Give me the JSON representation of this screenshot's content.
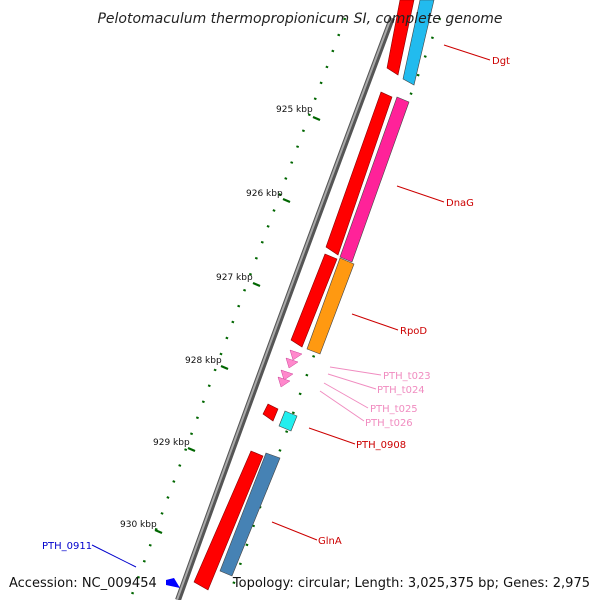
{
  "title": "Pelotomaculum thermopropionicum SI, complete genome",
  "footer": {
    "accession": "Accession: NC_009454",
    "summary": "Topology: circular; Length: 3,025,375 bp; Genes: 2,975"
  },
  "scale_labels": [
    "925 kbp",
    "926 kbp",
    "927 kbp",
    "928 kbp",
    "929 kbp",
    "930 kbp"
  ],
  "gene_labels": [
    {
      "id": "dgt",
      "text": "Dgt",
      "color": "#cc0000"
    },
    {
      "id": "dnag",
      "text": "DnaG",
      "color": "#cc0000"
    },
    {
      "id": "rpod",
      "text": "RpoD",
      "color": "#cc0000"
    },
    {
      "id": "pth_t023",
      "text": "PTH_t023",
      "color": "#f08cc0"
    },
    {
      "id": "pth_t024",
      "text": "PTH_t024",
      "color": "#f08cc0"
    },
    {
      "id": "pth_t025",
      "text": "PTH_t025",
      "color": "#f08cc0"
    },
    {
      "id": "pth_t026",
      "text": "PTH_t026",
      "color": "#f08cc0"
    },
    {
      "id": "pth_0908",
      "text": "PTH_0908",
      "color": "#cc0000"
    },
    {
      "id": "glna",
      "text": "GlnA",
      "color": "#cc0000"
    },
    {
      "id": "pth_0911",
      "text": "PTH_0911",
      "color": "#0000cc"
    }
  ],
  "colors": {
    "backbone": "#808080",
    "gene_red": "#ff0000",
    "cds_cyan": "#22bbee",
    "cds_pink": "#ff2299",
    "cds_orange": "#ff9911",
    "trna_pink": "#ff88cc",
    "cds_teal": "#22eeee",
    "cds_steel": "#4682b4",
    "reverse_blue": "#0000ff",
    "tick_green": "#006600"
  }
}
